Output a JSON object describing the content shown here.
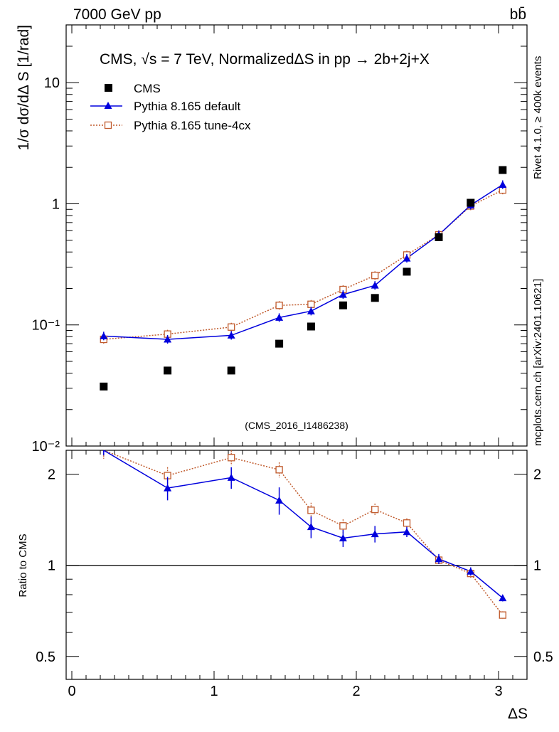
{
  "header": {
    "left": "7000 GeV pp",
    "right": "bb̄"
  },
  "side_labels": {
    "rivet": "Rivet 4.1.0, ≥ 400k events",
    "mcplots": "mcplots.cern.ch [arXiv:2401.10621]"
  },
  "analysis_id": "(CMS_2016_I1486238)",
  "chart_data": [
    {
      "type": "scatter",
      "panel": "main",
      "title": "CMS, √s = 7 TeV, NormalizedΔS in pp →  2b+2j+X",
      "ylabel": "1/σ dσ/dΔ S [1/rad]",
      "xlabel": "ΔS",
      "yscale": "log",
      "ylim": [
        0.01,
        30
      ],
      "xlim": [
        -0.04,
        3.2
      ],
      "x_ticks": [
        0,
        1,
        2,
        3
      ],
      "x_tick_labels": [
        "0",
        "1",
        "2",
        "3"
      ],
      "y_tick_labels": [
        "10",
        "1",
        "10⁻¹",
        "10⁻²"
      ],
      "y_tick_values": [
        10,
        1,
        0.1,
        0.01
      ],
      "legend": [
        "CMS",
        "Pythia 8.165 default",
        "Pythia 8.165 tune-4cx"
      ],
      "legend_position": "top-left",
      "x": [
        0.224,
        0.673,
        1.121,
        1.458,
        1.682,
        1.907,
        2.131,
        2.355,
        2.58,
        2.804,
        3.029
      ],
      "series": [
        {
          "name": "CMS",
          "color": "#000000",
          "marker": "filled-square",
          "values": [
            0.031,
            0.042,
            0.042,
            0.07,
            0.097,
            0.145,
            0.167,
            0.275,
            0.53,
            1.02,
            1.9
          ]
        },
        {
          "name": "Pythia 8.165 default",
          "color": "#0000dd",
          "marker": "filled-triangle",
          "values": [
            0.081,
            0.076,
            0.082,
            0.115,
            0.13,
            0.178,
            0.212,
            0.355,
            0.555,
            0.975,
            1.44
          ]
        },
        {
          "name": "Pythia 8.165 tune-4cx",
          "color": "#c05a2c",
          "marker": "open-square",
          "values": [
            0.076,
            0.084,
            0.096,
            0.145,
            0.148,
            0.196,
            0.256,
            0.378,
            0.555,
            0.96,
            1.3
          ]
        }
      ]
    },
    {
      "type": "line",
      "panel": "ratio",
      "ylabel": "Ratio to CMS",
      "xlabel": "ΔS",
      "yscale": "log",
      "ylim": [
        0.42,
        2.4
      ],
      "xlim": [
        -0.04,
        3.2
      ],
      "y_tick_labels": [
        "2",
        "1",
        "0.5"
      ],
      "y_tick_values": [
        2,
        1,
        0.5
      ],
      "reference_line": 1,
      "x": [
        0.224,
        0.673,
        1.121,
        1.458,
        1.682,
        1.907,
        2.131,
        2.355,
        2.58,
        2.804,
        3.029
      ],
      "series": [
        {
          "name": "Pythia 8.165 default",
          "color": "#0000dd",
          "values": [
            2.61,
            1.8,
            1.95,
            1.64,
            1.34,
            1.23,
            1.27,
            1.29,
            1.05,
            0.955,
            0.78
          ],
          "errors": [
            0.3,
            0.16,
            0.16,
            0.17,
            0.11,
            0.08,
            0.08,
            0.05,
            0.04,
            0.03,
            0.02
          ]
        },
        {
          "name": "Pythia 8.165 tune-4cx",
          "color": "#c05a2c",
          "values": [
            2.45,
            1.98,
            2.27,
            2.07,
            1.52,
            1.35,
            1.53,
            1.38,
            1.04,
            0.94,
            0.685
          ],
          "errors": [
            0.2,
            0.13,
            0.13,
            0.12,
            0.09,
            0.07,
            0.07,
            0.05,
            0.04,
            0.03,
            0.02
          ]
        }
      ]
    }
  ]
}
